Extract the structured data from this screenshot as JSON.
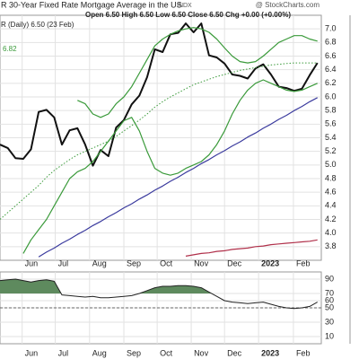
{
  "chart_data": [
    {
      "type": "line",
      "title": "R 30-Year Fixed Rate Mortgage Average in the US",
      "exchange": "INDX",
      "source": "@ StockCharts.com",
      "subtitle": "Open 6.50  High 6.50  Low 6.50  Close 6.50  Chg +0.00 (+0.00%)",
      "series_label": "R (Daily) 6.50 (23 Feb)",
      "x": [
        0,
        1,
        2,
        3,
        4,
        5,
        6,
        7,
        8,
        9,
        10,
        11,
        12,
        13,
        14,
        15,
        16,
        17,
        18,
        19,
        20,
        21,
        22,
        23,
        24,
        25,
        26,
        27,
        28,
        29,
        30,
        31,
        32,
        33,
        34,
        35,
        36,
        37,
        38,
        39,
        40,
        41
      ],
      "xlim": [
        0,
        41.5
      ],
      "xticks": [
        {
          "value": 2.86,
          "label": "Jun"
        },
        {
          "value": 7.14,
          "label": "Jul"
        },
        {
          "value": 11.57,
          "label": "Aug"
        },
        {
          "value": 16,
          "label": "Sep"
        },
        {
          "value": 20.3,
          "label": "Oct"
        },
        {
          "value": 24.7,
          "label": "Nov"
        },
        {
          "value": 29,
          "label": "Dec"
        },
        {
          "value": 33.4,
          "label": "2023"
        },
        {
          "value": 37.9,
          "label": "Feb"
        }
      ],
      "ylim": [
        3.6,
        7.2
      ],
      "yticks": [
        3.8,
        {
          "value": 4,
          "label": "4.0"
        },
        4.2,
        4.4,
        4.6,
        4.8,
        {
          "value": 5,
          "label": "5.0"
        },
        5.2,
        5.4,
        5.6,
        5.8,
        {
          "value": 6,
          "label": "6.0"
        },
        6.2,
        6.4,
        6.6,
        6.8,
        {
          "value": 7,
          "label": "7.0"
        }
      ],
      "grid": true,
      "series": [
        {
          "color": "#111111",
          "width": 2,
          "values": [
            5.3,
            5.25,
            5.1,
            5.09,
            5.23,
            5.78,
            5.81,
            5.7,
            5.3,
            5.51,
            5.54,
            5.3,
            4.99,
            5.22,
            5.13,
            5.55,
            5.66,
            5.89,
            6.02,
            6.29,
            6.7,
            6.66,
            6.92,
            6.94,
            7.08,
            6.95,
            7.08,
            6.61,
            6.58,
            6.49,
            6.33,
            6.31,
            6.27,
            6.42,
            6.48,
            6.33,
            6.15,
            6.13,
            6.09,
            6.12,
            6.32,
            6.5
          ]
        },
        {
          "color": "#3a9a3a",
          "width": 1.2,
          "values": [
            null,
            null,
            null,
            null,
            null,
            null,
            null,
            null,
            null,
            null,
            5.95,
            5.9,
            5.75,
            5.7,
            5.75,
            5.9,
            6.0,
            6.15,
            6.35,
            6.55,
            6.75,
            6.85,
            6.92,
            6.97,
            7.0,
            7.02,
            7.0,
            6.95,
            6.85,
            6.72,
            6.6,
            6.52,
            6.5,
            6.52,
            6.6,
            6.7,
            6.8,
            6.85,
            6.9,
            6.9,
            6.85,
            6.82
          ]
        },
        {
          "color": "#3a9a3a",
          "width": 1.2,
          "values": [
            null,
            null,
            null,
            3.7,
            3.9,
            4.05,
            4.2,
            4.4,
            4.6,
            4.8,
            4.9,
            4.95,
            5.05,
            5.2,
            5.35,
            5.5,
            5.65,
            5.7,
            5.5,
            5.2,
            4.95,
            4.88,
            4.85,
            4.88,
            4.95,
            5.0,
            5.05,
            5.15,
            5.3,
            5.5,
            5.75,
            5.95,
            6.1,
            6.2,
            6.25,
            6.2,
            6.15,
            6.1,
            6.08,
            6.1,
            6.15,
            6.2
          ]
        },
        {
          "color": "#3a9a3a",
          "width": 1,
          "dashed": true,
          "values": [
            4.2,
            4.3,
            4.4,
            4.5,
            4.6,
            4.7,
            4.82,
            4.92,
            5.0,
            5.08,
            5.15,
            5.2,
            5.25,
            5.3,
            5.35,
            5.42,
            5.5,
            5.58,
            5.66,
            5.75,
            5.85,
            5.93,
            6.0,
            6.06,
            6.12,
            6.18,
            6.22,
            6.26,
            6.3,
            6.33,
            6.36,
            6.39,
            6.41,
            6.43,
            6.45,
            6.47,
            6.48,
            6.49,
            6.5,
            6.5,
            6.5,
            6.5
          ]
        },
        {
          "color": "#3b3b9e",
          "width": 1.2,
          "values": [
            null,
            null,
            null,
            null,
            null,
            3.65,
            3.72,
            3.78,
            3.85,
            3.91,
            3.98,
            4.04,
            4.11,
            4.17,
            4.24,
            4.3,
            4.37,
            4.43,
            4.5,
            4.56,
            4.63,
            4.69,
            4.76,
            4.82,
            4.89,
            4.95,
            5.02,
            5.08,
            5.15,
            5.21,
            5.28,
            5.34,
            5.41,
            5.47,
            5.54,
            5.6,
            5.67,
            5.73,
            5.8,
            5.86,
            5.93,
            5.99
          ]
        },
        {
          "color": "#b0304a",
          "width": 1.2,
          "values": [
            null,
            null,
            null,
            null,
            null,
            null,
            null,
            null,
            null,
            null,
            null,
            null,
            null,
            null,
            null,
            null,
            null,
            null,
            null,
            null,
            null,
            null,
            null,
            null,
            3.66,
            3.68,
            3.7,
            3.71,
            3.73,
            3.74,
            3.76,
            3.77,
            3.78,
            3.8,
            3.81,
            3.83,
            3.84,
            3.85,
            3.86,
            3.87,
            3.88,
            3.9
          ]
        }
      ]
    },
    {
      "type": "line",
      "x": [
        0,
        1,
        2,
        3,
        4,
        5,
        6,
        7,
        8,
        9,
        10,
        11,
        12,
        13,
        14,
        15,
        16,
        17,
        18,
        19,
        20,
        21,
        22,
        23,
        24,
        25,
        26,
        27,
        28,
        29,
        30,
        31,
        32,
        33,
        34,
        35,
        36,
        37,
        38,
        39,
        40,
        41
      ],
      "xlim": [
        0,
        41.5
      ],
      "xticks": [
        {
          "value": 2.86,
          "label": "Jun"
        },
        {
          "value": 7.14,
          "label": "Jul"
        },
        {
          "value": 11.57,
          "label": "Aug"
        },
        {
          "value": 16,
          "label": "Sep"
        },
        {
          "value": 20.3,
          "label": "Oct"
        },
        {
          "value": 24.7,
          "label": "Nov"
        },
        {
          "value": 29,
          "label": "Dec"
        },
        {
          "value": 33.4,
          "label": "2023"
        },
        {
          "value": 37.9,
          "label": "Feb"
        }
      ],
      "ylim": [
        0,
        100
      ],
      "yticks": [
        10,
        30,
        50,
        60,
        70,
        90
      ],
      "grid": true,
      "reference_lines": [
        50
      ],
      "fill_threshold": 70,
      "fill_color": "#5e8a5e",
      "series": [
        {
          "color": "#222222",
          "width": 1,
          "values": [
            88,
            89,
            90,
            88,
            86,
            88,
            89,
            87,
            68,
            67,
            66,
            65,
            66,
            64,
            64,
            65,
            66,
            67,
            70,
            74,
            78,
            80,
            80,
            81,
            81,
            80,
            78,
            72,
            66,
            60,
            58,
            57,
            56,
            57,
            58,
            55,
            52,
            50,
            49,
            50,
            52,
            58
          ]
        }
      ]
    }
  ]
}
